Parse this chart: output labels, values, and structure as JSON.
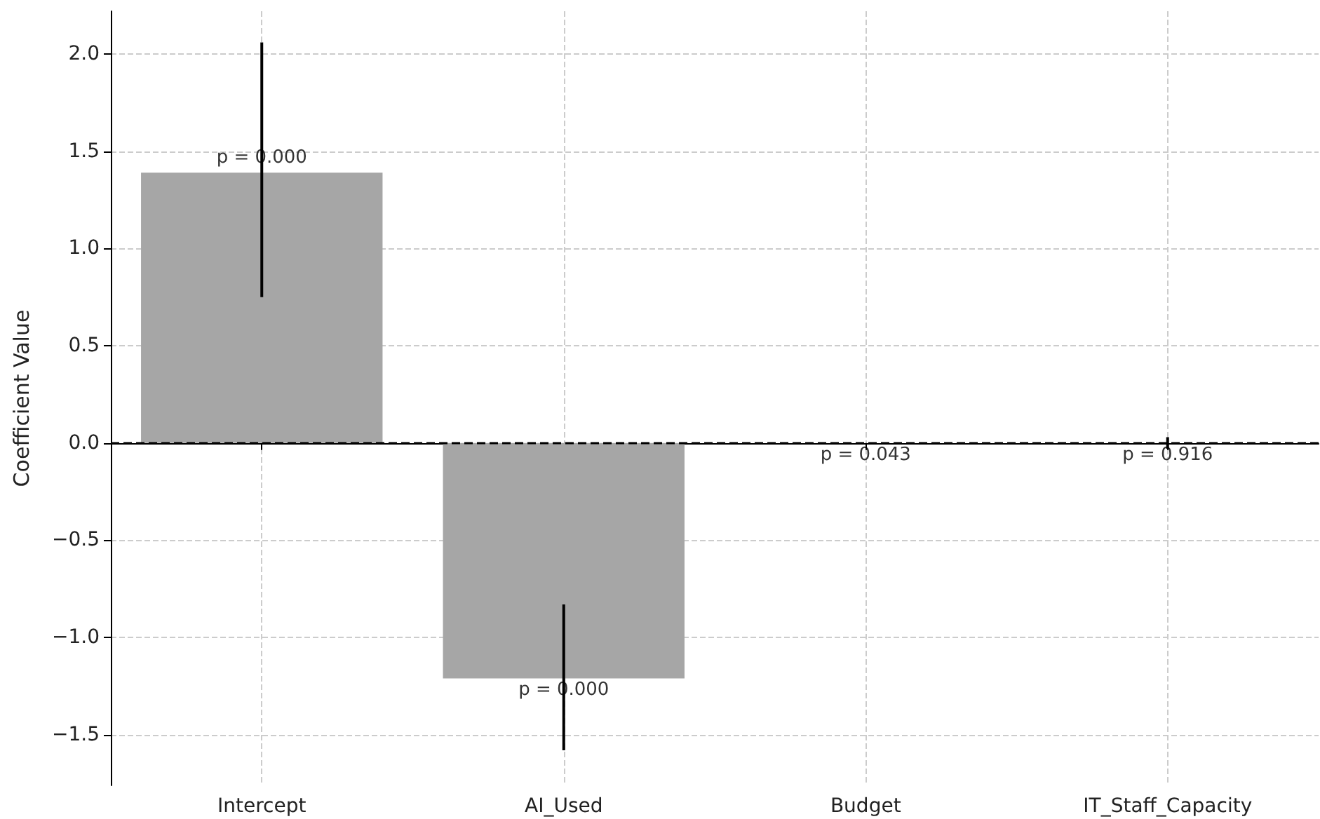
{
  "chart_data": {
    "type": "bar",
    "ylabel": "Coefficient Value",
    "categories": [
      "Intercept",
      "AI_Used",
      "Budget",
      "IT_Staff_Capacity"
    ],
    "values": [
      1.39,
      -1.21,
      0,
      0
    ],
    "color": "#a6a6a6",
    "errors": [
      [
        0.75,
        2.06
      ],
      [
        -1.58,
        -0.83
      ],
      null,
      [
        -0.03,
        0.03
      ]
    ],
    "ylim": [
      -1.76,
      2.22
    ],
    "yticks": [
      {
        "value": -1.5,
        "label": "−1.5"
      },
      {
        "value": -1.0,
        "label": "−1.0"
      },
      {
        "value": -0.5,
        "label": "−0.5"
      },
      {
        "value": 0,
        "label": "0.0"
      },
      {
        "value": 0.5,
        "label": "0.5"
      },
      {
        "value": 1.0,
        "label": "1.0"
      },
      {
        "value": 1.5,
        "label": "1.5"
      },
      {
        "value": 2.0,
        "label": "2.0"
      }
    ],
    "ref_lines": [
      {
        "axis": "y",
        "value": 0,
        "color": "#000000",
        "line_style": "dashed"
      }
    ],
    "annotations": [
      {
        "text": "p = 0.000",
        "x": "Intercept",
        "y": 1.39
      },
      {
        "text": "p = 0.000",
        "x": "AI_Used",
        "y": -1.21
      },
      {
        "text": "p = 0.043",
        "x": "Budget",
        "y": 0
      },
      {
        "text": "p = 0.916",
        "x": "IT_Staff_Capacity",
        "y": 0
      }
    ],
    "grid": true
  }
}
